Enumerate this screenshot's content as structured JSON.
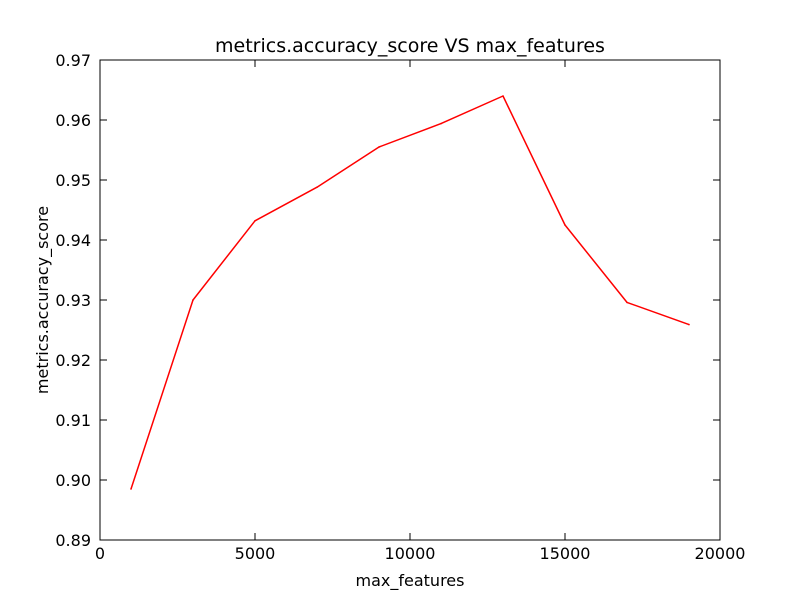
{
  "chart_data": {
    "type": "line",
    "title": "metrics.accuracy_score VS max_features",
    "xlabel": "max_features",
    "ylabel": "metrics.accuracy_score",
    "xlim": [
      0,
      20000
    ],
    "ylim": [
      0.89,
      0.97
    ],
    "x_ticks": [
      0,
      5000,
      10000,
      15000,
      20000
    ],
    "x_tick_labels": [
      "0",
      "5000",
      "10000",
      "15000",
      "20000"
    ],
    "y_ticks": [
      0.89,
      0.9,
      0.91,
      0.92,
      0.93,
      0.94,
      0.95,
      0.96,
      0.97
    ],
    "y_tick_labels": [
      "0.89",
      "0.90",
      "0.91",
      "0.92",
      "0.93",
      "0.94",
      "0.95",
      "0.96",
      "0.97"
    ],
    "grid": false,
    "series": [
      {
        "color": "#ff0000",
        "x": [
          1000,
          3000,
          5000,
          7000,
          9000,
          11000,
          13000,
          15000,
          17000,
          19000
        ],
        "y": [
          0.8985,
          0.93,
          0.9432,
          0.9488,
          0.9555,
          0.9594,
          0.964,
          0.9425,
          0.9296,
          0.9259
        ]
      }
    ]
  }
}
